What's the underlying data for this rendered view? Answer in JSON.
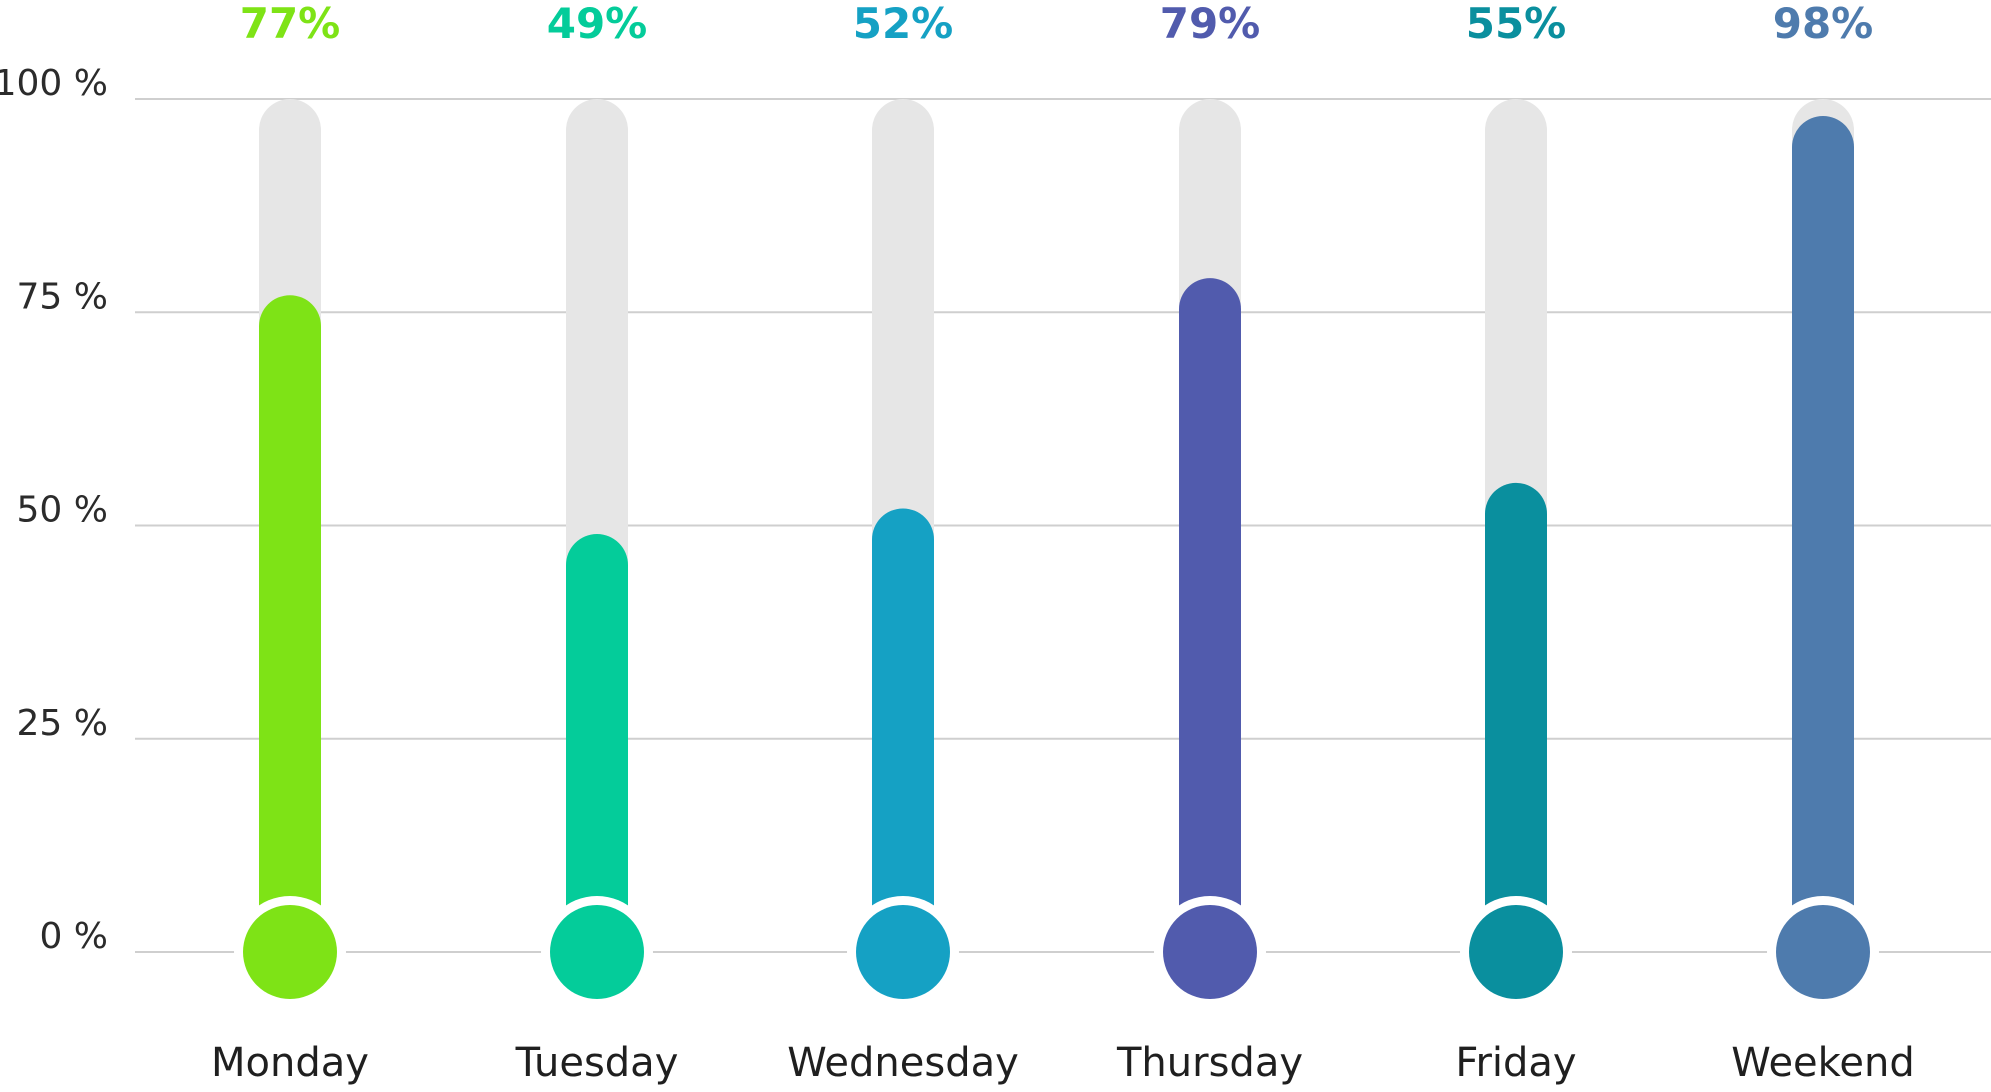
{
  "chart_data": {
    "type": "bar",
    "style": "thermometer",
    "categories": [
      "Monday",
      "Tuesday",
      "Wednesday",
      "Thursday",
      "Friday",
      "Weekend"
    ],
    "values": [
      77,
      49,
      52,
      79,
      55,
      98
    ],
    "value_labels": [
      "77%",
      "49%",
      "52%",
      "79%",
      "55%",
      "98%"
    ],
    "colors": [
      "#7ee316",
      "#04cc9a",
      "#15a1c4",
      "#515bad",
      "#0a8f9e",
      "#4e7bad"
    ],
    "ylim": [
      0,
      100
    ],
    "yticks": [
      0,
      25,
      50,
      75,
      100
    ],
    "ytick_labels": [
      "0 %",
      "25 %",
      "50 %",
      "75 %",
      "100 %"
    ],
    "grid": true,
    "track_color": "#e6e6e6",
    "grid_color": "#cfcfcf"
  }
}
